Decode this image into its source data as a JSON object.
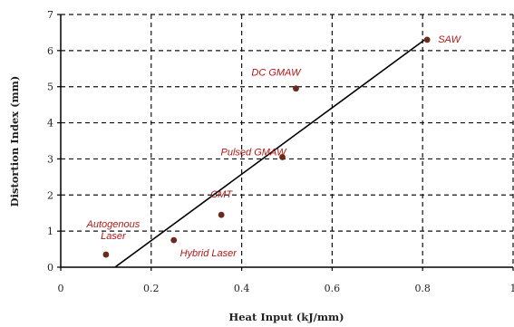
{
  "chart_data": {
    "type": "scatter",
    "xlabel": "Heat Input (kJ/mm)",
    "ylabel": "Distortion Index (mm)",
    "xlim": [
      0,
      1
    ],
    "ylim": [
      0,
      7
    ],
    "xticks": [
      "0",
      "0.2",
      "0.4",
      "0.6",
      "0.8",
      "1"
    ],
    "yticks": [
      "0",
      "1",
      "2",
      "3",
      "4",
      "5",
      "6",
      "7"
    ],
    "grid": true,
    "grid_style": "dashed",
    "colors": {
      "point": "#6b2a1c",
      "annotation": "#b01818",
      "line": "#000000"
    },
    "points": [
      {
        "x": 0.1,
        "y": 0.35,
        "label": "Autogenous\nLaser"
      },
      {
        "x": 0.25,
        "y": 0.75,
        "label": "Hybrid Laser"
      },
      {
        "x": 0.355,
        "y": 1.45,
        "label": "CMT"
      },
      {
        "x": 0.49,
        "y": 3.05,
        "label": "Pulsed GMAW"
      },
      {
        "x": 0.52,
        "y": 4.95,
        "label": "DC GMAW"
      },
      {
        "x": 0.81,
        "y": 6.3,
        "label": "SAW"
      }
    ],
    "trendline": {
      "x": [
        0.12,
        0.81
      ],
      "y": [
        0,
        6.35
      ]
    }
  }
}
